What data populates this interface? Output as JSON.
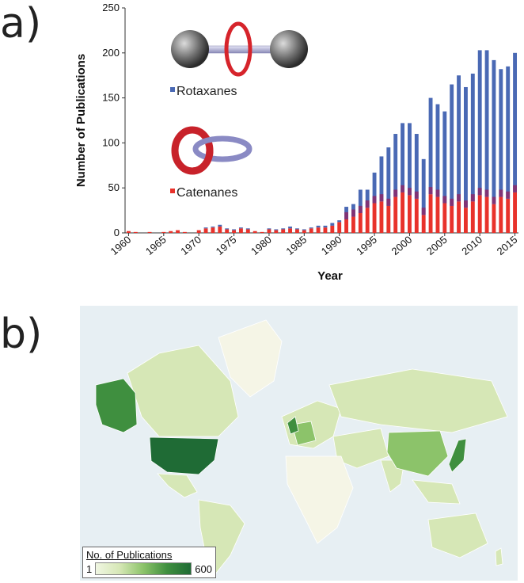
{
  "panels": {
    "a_label": "a)",
    "b_label": "b)"
  },
  "chart_data": {
    "type": "bar",
    "stacked": true,
    "xlabel": "Year",
    "ylabel": "Number of Publications",
    "ylim": [
      0,
      250
    ],
    "yticks": [
      0,
      50,
      100,
      150,
      200,
      250
    ],
    "xticks": [
      1960,
      1965,
      1970,
      1975,
      1980,
      1985,
      1990,
      1995,
      2000,
      2005,
      2010,
      2015
    ],
    "categories": [
      1960,
      1961,
      1962,
      1963,
      1964,
      1965,
      1966,
      1967,
      1968,
      1969,
      1970,
      1971,
      1972,
      1973,
      1974,
      1975,
      1976,
      1977,
      1978,
      1979,
      1980,
      1981,
      1982,
      1983,
      1984,
      1985,
      1986,
      1987,
      1988,
      1989,
      1990,
      1991,
      1992,
      1993,
      1994,
      1995,
      1996,
      1997,
      1998,
      1999,
      2000,
      2001,
      2002,
      2003,
      2004,
      2005,
      2006,
      2007,
      2008,
      2009,
      2010,
      2011,
      2012,
      2013,
      2014,
      2015
    ],
    "series": [
      {
        "name": "Catenanes",
        "color": "#e8322b",
        "values": [
          2,
          1,
          0,
          1,
          0,
          1,
          2,
          3,
          1,
          0,
          3,
          5,
          6,
          7,
          4,
          3,
          5,
          4,
          2,
          1,
          4,
          3,
          4,
          5,
          4,
          3,
          5,
          6,
          6,
          8,
          12,
          15,
          18,
          22,
          28,
          33,
          35,
          30,
          40,
          45,
          42,
          38,
          20,
          43,
          40,
          33,
          30,
          35,
          28,
          35,
          42,
          40,
          32,
          40,
          38,
          45
        ]
      },
      {
        "name": "Rotaxanes",
        "color": "#4a69b4",
        "values": [
          0,
          0,
          0,
          0,
          0,
          0,
          0,
          0,
          0,
          0,
          0,
          1,
          1,
          2,
          1,
          1,
          1,
          1,
          0,
          0,
          1,
          1,
          1,
          2,
          1,
          1,
          1,
          2,
          2,
          3,
          2,
          14,
          14,
          26,
          20,
          34,
          50,
          65,
          70,
          77,
          80,
          72,
          62,
          107,
          103,
          102,
          135,
          140,
          134,
          142,
          161,
          163,
          160,
          142,
          147,
          155
        ]
      }
    ],
    "overlap_color": "#8b2a6a",
    "legend": [
      "Rotaxanes",
      "Catenanes"
    ]
  },
  "map": {
    "legend_title": "No. of Publications",
    "legend_min": "1",
    "legend_max": "600",
    "colors": {
      "ocean": "#e7eff3",
      "none": "#f5f5e6",
      "low": "#d6e7b6",
      "mid": "#8cc36a",
      "high": "#3f8f3f",
      "max": "#1f6b35"
    }
  }
}
